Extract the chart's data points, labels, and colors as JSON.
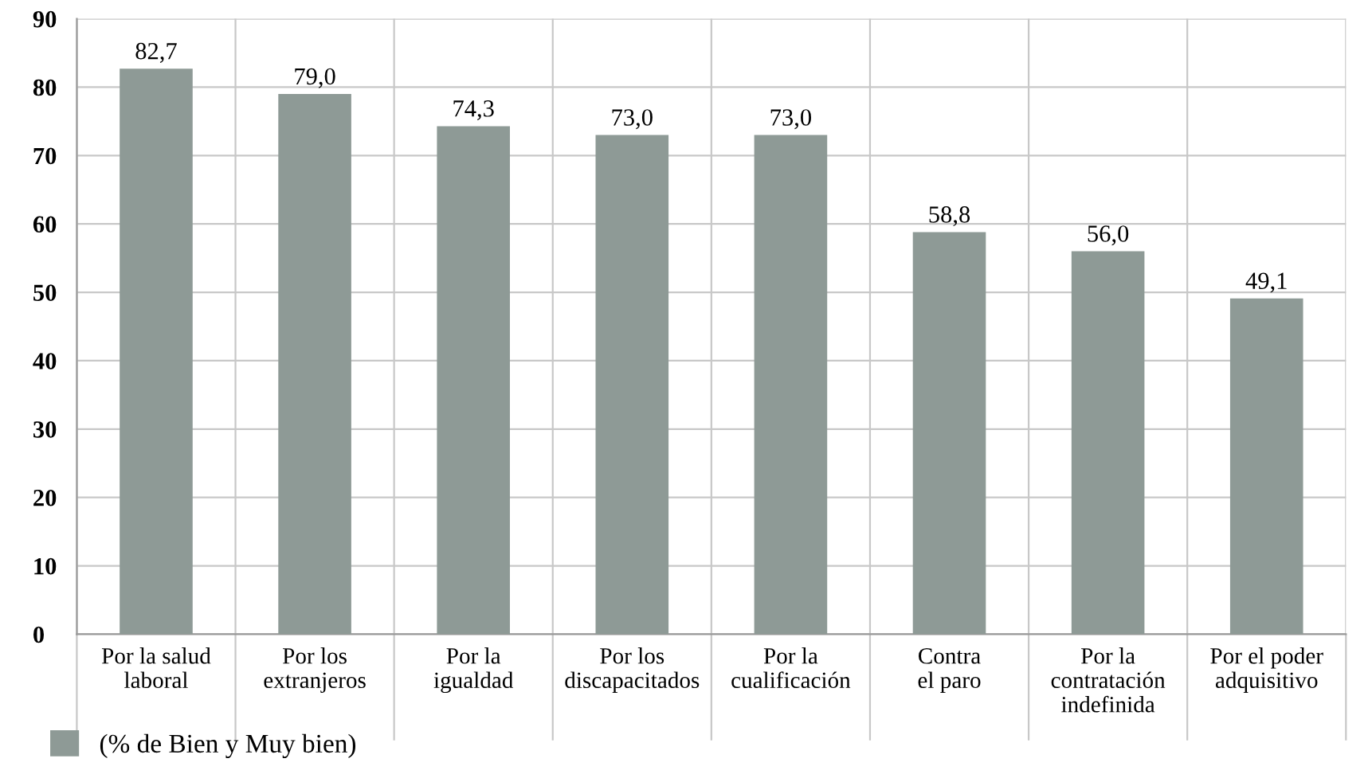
{
  "chart_data": {
    "type": "bar",
    "categories": [
      "Por la salud\nlaboral",
      "Por los\nextranjeros",
      "Por la\nigualdad",
      "Por los\ndiscapacitados",
      "Por la\ncualificación",
      "Contra\nel paro",
      "Por la\ncontratación\nindefinida",
      "Por el poder\nadquisitivo"
    ],
    "series": [
      {
        "name": "(% de Bien y Muy bien)",
        "color": "#8e9a96",
        "values": [
          82.7,
          79.0,
          74.3,
          73.0,
          73.0,
          58.8,
          56.0,
          49.1
        ],
        "value_labels": [
          "82,7",
          "79,0",
          "74,3",
          "73,0",
          "73,0",
          "58,8",
          "56,0",
          "49,1"
        ]
      }
    ],
    "ylim": [
      0,
      90
    ],
    "yticks": [
      0,
      10,
      20,
      30,
      40,
      50,
      60,
      70,
      80,
      90
    ],
    "grid": true,
    "legend": "bottom left"
  }
}
